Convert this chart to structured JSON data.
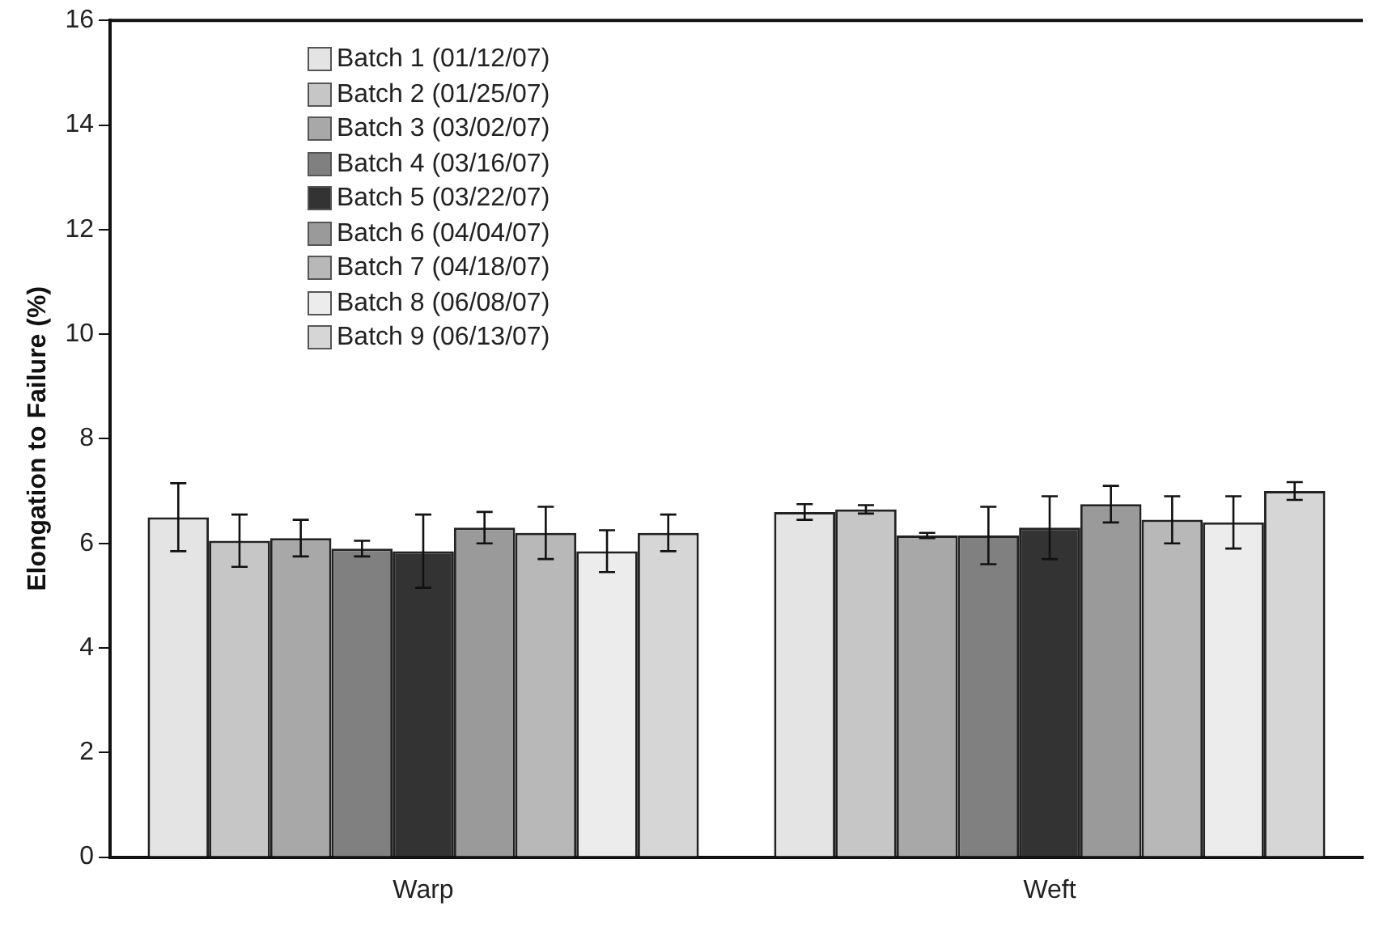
{
  "chart_data": {
    "type": "bar",
    "ylabel": "Elongation to Failure (%)",
    "categories": [
      "Warp",
      "Weft"
    ],
    "series": [
      {
        "name": "Batch 1 (01/12/07)",
        "color": "#e4e4e4",
        "values": [
          6.5,
          6.6
        ],
        "errors": [
          0.65,
          0.15
        ]
      },
      {
        "name": "Batch 2 (01/25/07)",
        "color": "#c6c6c6",
        "values": [
          6.05,
          6.65
        ],
        "errors": [
          0.5,
          0.08
        ]
      },
      {
        "name": "Batch 3 (03/02/07)",
        "color": "#a8a8a8",
        "values": [
          6.1,
          6.15
        ],
        "errors": [
          0.35,
          0.05
        ]
      },
      {
        "name": "Batch 4 (03/16/07)",
        "color": "#808080",
        "values": [
          5.9,
          6.15
        ],
        "errors": [
          0.15,
          0.55
        ]
      },
      {
        "name": "Batch 5 (03/22/07)",
        "color": "#333333",
        "values": [
          5.85,
          6.3
        ],
        "errors": [
          0.7,
          0.6
        ]
      },
      {
        "name": "Batch 6 (04/04/07)",
        "color": "#9a9a9a",
        "values": [
          6.3,
          6.75
        ],
        "errors": [
          0.3,
          0.35
        ]
      },
      {
        "name": "Batch 7 (04/18/07)",
        "color": "#b8b8b8",
        "values": [
          6.2,
          6.45
        ],
        "errors": [
          0.5,
          0.45
        ]
      },
      {
        "name": "Batch 8 (06/08/07)",
        "color": "#ececec",
        "values": [
          5.85,
          6.4
        ],
        "errors": [
          0.4,
          0.5
        ]
      },
      {
        "name": "Batch 9 (06/13/07)",
        "color": "#d6d6d6",
        "values": [
          6.2,
          7.0
        ],
        "errors": [
          0.35,
          0.17
        ]
      }
    ],
    "ylim": [
      0,
      16
    ],
    "yticks": [
      0,
      2,
      4,
      6,
      8,
      10,
      12,
      14,
      16
    ],
    "grid": false,
    "legend": "top left"
  }
}
